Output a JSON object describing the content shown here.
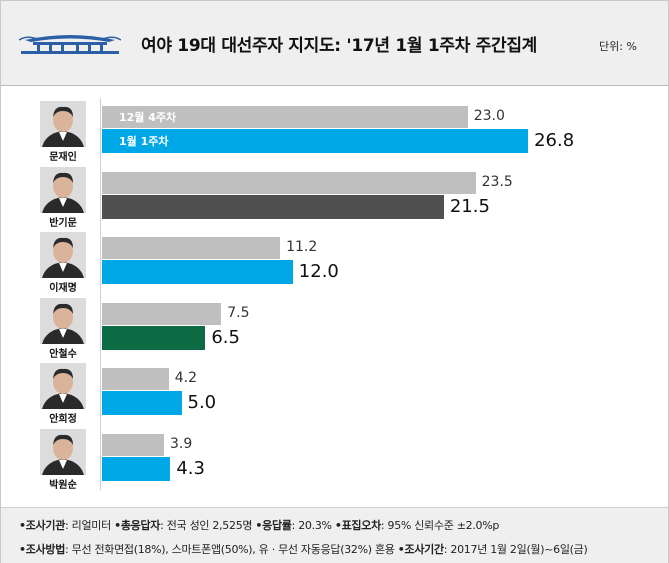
{
  "header": {
    "title": "여야 19대 대선주자 지지도: '17년 1월 1주차 주간집계",
    "unit": "단위: %"
  },
  "legend": {
    "prev_label": "12월 4주차",
    "curr_label": "1월 1주차"
  },
  "colors": {
    "prev": "#bfbfbf",
    "default_current": "#00a7e7",
    "ban_current": "#505050",
    "ahn_current": "#0d6b43"
  },
  "chart_data": {
    "type": "bar",
    "orientation": "horizontal",
    "title": "여야 19대 대선주자 지지도: '17년 1월 1주차 주간집계",
    "unit": "%",
    "categories": [
      "문재인",
      "반기문",
      "이재명",
      "안철수",
      "안희정",
      "박원순"
    ],
    "series": [
      {
        "name": "12월 4주차",
        "values": [
          23.0,
          23.5,
          11.2,
          7.5,
          4.2,
          3.9
        ],
        "color": "#bfbfbf"
      },
      {
        "name": "1월 1주차",
        "values": [
          26.8,
          21.5,
          12.0,
          6.5,
          5.0,
          4.3
        ],
        "colors": [
          "#00a7e7",
          "#505050",
          "#00a7e7",
          "#0d6b43",
          "#00a7e7",
          "#00a7e7"
        ]
      }
    ],
    "xlim": [
      0,
      30
    ],
    "grid": false
  },
  "footer": {
    "line1": [
      {
        "label": "조사기관",
        "value": ": 리얼미터"
      },
      {
        "label": "총응답자",
        "value": ": 전국 성인 2,525명"
      },
      {
        "label": "응답률",
        "value": ": 20.3%"
      },
      {
        "label": "표집오차",
        "value": ": 95% 신뢰수준 ±2.0%p"
      }
    ],
    "line2": [
      {
        "label": "조사방법",
        "value": ": 무선 전화면접(18%), 스마트폰앱(50%), 유 · 무선 자동응답(32%) 혼용"
      },
      {
        "label": "조사기간",
        "value": ": 2017년 1월 2일(월)~6일(금)"
      }
    ]
  }
}
